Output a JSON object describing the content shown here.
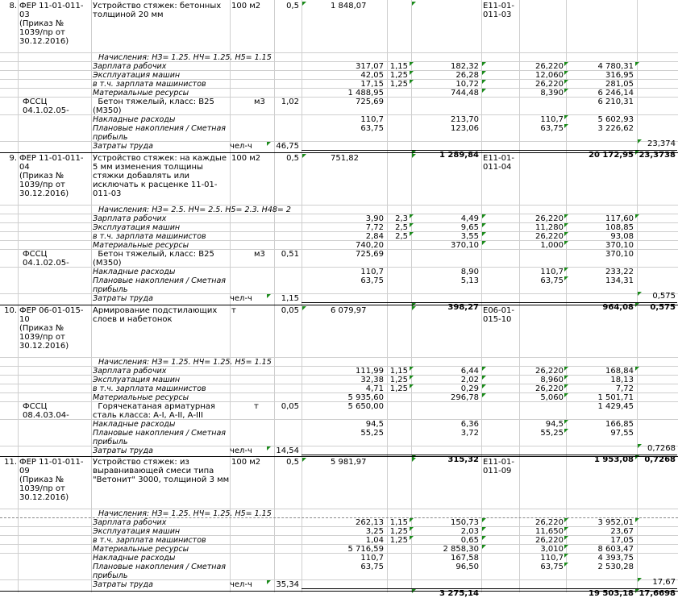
{
  "blocks": [
    {
      "num": "8.",
      "code": [
        "ФЕР 11-01-011-",
        "03",
        "(Приказ №",
        "1039/пр от",
        "30.12.2016)"
      ],
      "title": [
        "Устройство стяжек: бетонных",
        "толщиной 20 мм"
      ],
      "unit": "100 м2",
      "qty": "0,5",
      "base": "1 848,07",
      "ref": [
        "Е11-01-",
        "011-03"
      ],
      "charges": "Начисления: НЗ= 1.25. НЧ= 1.25. Н5= 1.15",
      "rows": [
        {
          "label": "Зарплата рабочих",
          "c5": "317,07",
          "k": "1,15",
          "c7": "182,32",
          "c9": "26,220",
          "c10": "4 780,31"
        },
        {
          "label": "Эксплуатация машин",
          "c5": "42,05",
          "k": "1,25",
          "c7": "26,28",
          "c9": "12,060",
          "c10": "316,95"
        },
        {
          "label": "в т.ч. зарплата машинистов",
          "c5": "17,15",
          "k": "1,25",
          "c7": "10,72",
          "c9": "26,220",
          "c10": "281,05"
        },
        {
          "label": "Материальные ресурсы",
          "c5": "1 488,95",
          "k": "",
          "c7": "744,48",
          "c9": "8,390",
          "c10": "6 246,14"
        }
      ],
      "material": {
        "code": [
          "ФССЦ",
          "04.1.02.05-"
        ],
        "name": [
          "Бетон тяжелый, класс: В25",
          "(М350)"
        ],
        "unit": "м3",
        "qty": "1,02",
        "price": "725,69",
        "total": "6 210,31"
      },
      "overhead": {
        "label": "Накладные расходы",
        "c5": "110,7",
        "c7": "213,70",
        "c9": "110,7",
        "c10": "5 602,93"
      },
      "profit": {
        "label": [
          "Плановые накопления / Сметная",
          "прибыль"
        ],
        "c5": "63,75",
        "c7": "123,06",
        "c9": "63,75",
        "c10": "3 226,62"
      },
      "labor": {
        "label": "Затраты труда",
        "unit": "чел-ч",
        "qty": "46,75",
        "val": "23,374"
      },
      "totals": {
        "base": "1 289,84",
        "current": "20 172,95",
        "labor": "23,3738"
      }
    },
    {
      "num": "9.",
      "code": [
        "ФЕР 11-01-011-",
        "04",
        "(Приказ №",
        "1039/пр от",
        "30.12.2016)"
      ],
      "title": [
        "Устройство стяжек: на каждые",
        "5 мм изменения толщины",
        "стяжки добавлять или",
        "исключать к расценке 11-01-",
        "011-03"
      ],
      "unit": "100 м2",
      "qty": "0,5",
      "base": "751,82",
      "ref": [
        "Е11-01-",
        "011-04"
      ],
      "charges": "Начисления: НЗ= 2.5. НЧ= 2.5. Н5= 2.3. Н48= 2",
      "rows": [
        {
          "label": "Зарплата рабочих",
          "c5": "3,90",
          "k": "2,3",
          "c7": "4,49",
          "c9": "26,220",
          "c10": "117,60"
        },
        {
          "label": "Эксплуатация машин",
          "c5": "7,72",
          "k": "2,5",
          "c7": "9,65",
          "c9": "11,280",
          "c10": "108,85"
        },
        {
          "label": "в т.ч. зарплата машинистов",
          "c5": "2,84",
          "k": "2,5",
          "c7": "3,55",
          "c9": "26,220",
          "c10": "93,08"
        },
        {
          "label": "Материальные ресурсы",
          "c5": "740,20",
          "k": "",
          "c7": "370,10",
          "c9": "1,000",
          "c10": "370,10"
        }
      ],
      "material": {
        "code": [
          "ФССЦ",
          "04.1.02.05-"
        ],
        "name": [
          "Бетон тяжелый, класс: В25",
          "(М350)"
        ],
        "unit": "м3",
        "qty": "0,51",
        "price": "725,69",
        "total": "370,10"
      },
      "overhead": {
        "label": "Накладные расходы",
        "c5": "110,7",
        "c7": "8,90",
        "c9": "110,7",
        "c10": "233,22"
      },
      "profit": {
        "label": [
          "Плановые накопления / Сметная",
          "прибыль"
        ],
        "c5": "63,75",
        "c7": "5,13",
        "c9": "63,75",
        "c10": "134,31"
      },
      "labor": {
        "label": "Затраты труда",
        "unit": "чел-ч",
        "qty": "1,15",
        "val": "0,575"
      },
      "totals": {
        "base": "398,27",
        "current": "964,08",
        "labor": "0,575"
      }
    },
    {
      "num": "10.",
      "code": [
        "ФЕР 06-01-015-",
        "10",
        "(Приказ №",
        "1039/пр от",
        "30.12.2016)"
      ],
      "title": [
        "Армирование подстилающих",
        "слоев и набетонок"
      ],
      "unit": "т",
      "qty": "0,05",
      "base": "6 079,97",
      "ref": [
        "Е06-01-",
        "015-10"
      ],
      "charges": "Начисления: НЗ= 1.25. НЧ= 1.25. Н5= 1.15",
      "rows": [
        {
          "label": "Зарплата рабочих",
          "c5": "111,99",
          "k": "1,15",
          "c7": "6,44",
          "c9": "26,220",
          "c10": "168,84"
        },
        {
          "label": "Эксплуатация машин",
          "c5": "32,38",
          "k": "1,25",
          "c7": "2,02",
          "c9": "8,960",
          "c10": "18,13"
        },
        {
          "label": "в т.ч. зарплата машинистов",
          "c5": "4,71",
          "k": "1,25",
          "c7": "0,29",
          "c9": "26,220",
          "c10": "7,72"
        },
        {
          "label": "Материальные ресурсы",
          "c5": "5 935,60",
          "k": "",
          "c7": "296,78",
          "c9": "5,060",
          "c10": "1 501,71"
        }
      ],
      "material": {
        "code": [
          "ФССЦ",
          "08.4.03.04-"
        ],
        "name": [
          "Горячекатаная арматурная",
          "сталь класса: А-I, А-II, А-III"
        ],
        "unit": "т",
        "qty": "0,05",
        "price": "5 650,00",
        "total": "1 429,45"
      },
      "overhead": {
        "label": "Накладные расходы",
        "c5": "94,5",
        "c7": "6,36",
        "c9": "94,5",
        "c10": "166,85"
      },
      "profit": {
        "label": [
          "Плановые накопления / Сметная",
          "прибыль"
        ],
        "c5": "55,25",
        "c7": "3,72",
        "c9": "55,25",
        "c10": "97,55"
      },
      "labor": {
        "label": "Затраты труда",
        "unit": "чел-ч",
        "qty": "14,54",
        "val": "0,7268"
      },
      "totals": {
        "base": "315,32",
        "current": "1 953,08",
        "labor": "0,7268"
      }
    },
    {
      "num": "11.",
      "code": [
        "ФЕР 11-01-011-",
        "09",
        "(Приказ №",
        "1039/пр от",
        "30.12.2016)"
      ],
      "title": [
        "Устройство стяжек: из",
        "выравнивающей смеси типа",
        "\"Ветонит\" 3000, толщиной 3 мм"
      ],
      "unit": "100 м2",
      "qty": "0,5",
      "base": "5 981,97",
      "ref": [
        "Е11-01-",
        "011-09"
      ],
      "charges": "Начисления: НЗ= 1.25. НЧ= 1.25. Н5= 1.15",
      "rows": [
        {
          "label": "Зарплата рабочих",
          "c5": "262,13",
          "k": "1,15",
          "c7": "150,73",
          "c9": "26,220",
          "c10": "3 952,01"
        },
        {
          "label": "Эксплуатация машин",
          "c5": "3,25",
          "k": "1,25",
          "c7": "2,03",
          "c9": "11,650",
          "c10": "23,67"
        },
        {
          "label": "в т.ч. зарплата машинистов",
          "c5": "1,04",
          "k": "1,25",
          "c7": "0,65",
          "c9": "26,220",
          "c10": "17,05"
        },
        {
          "label": "Материальные ресурсы",
          "c5": "5 716,59",
          "k": "",
          "c7": "2 858,30",
          "c9": "3,010",
          "c10": "8 603,47"
        }
      ],
      "overhead": {
        "label": "Накладные расходы",
        "c5": "110,7",
        "c7": "167,58",
        "c9": "110,7",
        "c10": "4 393,75"
      },
      "profit": {
        "label": [
          "Плановые накопления / Сметная",
          "прибыль"
        ],
        "c5": "63,75",
        "c7": "96,50",
        "c9": "63,75",
        "c10": "2 530,28"
      },
      "labor": {
        "label": "Затраты труда",
        "unit": "чел-ч",
        "qty": "35,34",
        "val": "17,67"
      },
      "totals": {
        "base": "3 275,14",
        "current": "19 503,18",
        "labor": "17,6698"
      }
    }
  ]
}
